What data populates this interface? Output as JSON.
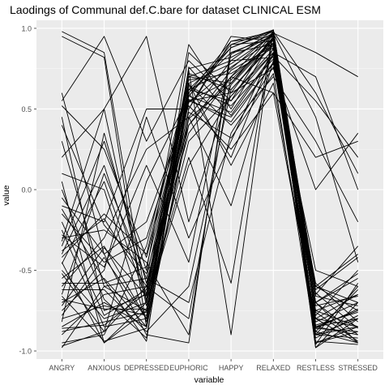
{
  "chart_data": {
    "type": "line",
    "title": "Laodings of Communal def.C.bare for dataset CLINICAL ESM",
    "xlabel": "variable",
    "ylabel": "value",
    "categories": [
      "ANGRY",
      "ANXIOUS",
      "DEPRESSED",
      "EUPHORIC",
      "HAPPY",
      "RELAXED",
      "RESTLESS",
      "STRESSED"
    ],
    "ylim": [
      -1.05,
      1.05
    ],
    "yticks": [
      -1.0,
      -0.5,
      0.0,
      0.5,
      1.0
    ],
    "ytick_labels": [
      "-1.0",
      "-0.5",
      "0.0",
      "0.5",
      "1.0"
    ],
    "grid": true,
    "legend": "none",
    "colors": {
      "panel": "#ebebeb",
      "grid_major": "#ffffff",
      "grid_minor": "#f5f5f5",
      "line": "#000000",
      "text": "#4d4d4d"
    },
    "series": [
      {
        "values": [
          0.98,
          0.85,
          -0.7,
          0.55,
          0.6,
          0.95,
          -0.9,
          -0.85
        ]
      },
      {
        "values": [
          0.95,
          0.82,
          -0.85,
          0.4,
          0.7,
          0.98,
          -0.98,
          -0.7
        ]
      },
      {
        "values": [
          -0.98,
          -0.6,
          -0.75,
          0.6,
          0.85,
          0.9,
          -0.85,
          -0.8
        ]
      },
      {
        "values": [
          -0.97,
          -0.88,
          -0.6,
          0.62,
          0.75,
          0.97,
          0.85,
          0.7
        ]
      },
      {
        "values": [
          0.6,
          -0.4,
          -0.9,
          -0.95,
          0.9,
          0.92,
          -0.6,
          -0.75
        ]
      },
      {
        "values": [
          0.55,
          0.95,
          0.3,
          0.8,
          0.55,
          0.85,
          -0.7,
          -0.95
        ]
      },
      {
        "values": [
          0.45,
          -0.75,
          -0.65,
          0.7,
          0.8,
          0.99,
          -0.8,
          -0.65
        ]
      },
      {
        "values": [
          0.2,
          0.5,
          0.95,
          -0.2,
          0.65,
          0.93,
          -0.75,
          -0.85
        ]
      },
      {
        "values": [
          -0.1,
          -0.2,
          0.5,
          0.5,
          0.92,
          0.98,
          -0.95,
          -0.88
        ]
      },
      {
        "values": [
          -0.25,
          -0.85,
          -0.8,
          0.85,
          0.6,
          0.75,
          0.0,
          0.35
        ]
      },
      {
        "values": [
          -0.35,
          0.3,
          -0.5,
          0.9,
          0.5,
          0.94,
          -0.6,
          -0.4
        ]
      },
      {
        "values": [
          -0.45,
          -0.95,
          -0.7,
          0.45,
          -0.1,
          0.8,
          -0.85,
          -0.9
        ]
      },
      {
        "values": [
          -0.55,
          -0.35,
          -0.8,
          0.75,
          0.82,
          0.96,
          -0.9,
          -0.6
        ]
      },
      {
        "values": [
          -0.65,
          0.1,
          -0.55,
          0.65,
          0.4,
          0.7,
          0.3,
          -0.2
        ]
      },
      {
        "values": [
          -0.75,
          -0.5,
          0.45,
          -0.3,
          0.3,
          0.88,
          -0.95,
          -0.85
        ]
      },
      {
        "values": [
          -0.85,
          -0.7,
          -0.85,
          0.58,
          0.9,
          0.99,
          -0.7,
          -0.55
        ]
      },
      {
        "values": [
          -0.9,
          -0.65,
          -0.6,
          0.35,
          0.7,
          0.6,
          -0.8,
          -0.95
        ]
      },
      {
        "values": [
          0.05,
          -0.95,
          -0.75,
          0.6,
          0.2,
          0.85,
          0.7,
          0.0
        ]
      },
      {
        "values": [
          -0.15,
          -0.45,
          -0.3,
          0.55,
          0.45,
          0.78,
          -0.6,
          -0.7
        ]
      },
      {
        "values": [
          -0.3,
          -0.25,
          -0.45,
          -0.9,
          0.85,
          0.95,
          -0.85,
          -0.75
        ]
      },
      {
        "values": [
          -0.4,
          0.15,
          -0.65,
          0.72,
          0.62,
          0.9,
          -0.9,
          -0.92
        ]
      },
      {
        "values": [
          -0.5,
          -0.8,
          -0.7,
          0.2,
          -0.58,
          0.99,
          -0.65,
          -0.35
        ]
      },
      {
        "values": [
          -0.6,
          -0.3,
          0.25,
          0.45,
          0.8,
          0.82,
          -0.75,
          -0.65
        ]
      },
      {
        "values": [
          -0.7,
          -0.55,
          -0.85,
          0.62,
          0.55,
          0.97,
          0.45,
          -0.45
        ]
      },
      {
        "values": [
          -0.8,
          -0.72,
          -0.78,
          0.5,
          0.95,
          0.92,
          -0.98,
          -0.8
        ]
      },
      {
        "values": [
          -0.95,
          -0.9,
          -0.35,
          0.68,
          0.72,
          0.88,
          -0.88,
          -0.95
        ]
      },
      {
        "values": [
          0.3,
          -0.6,
          -0.55,
          -0.7,
          0.35,
          0.76,
          -0.5,
          -0.6
        ]
      },
      {
        "values": [
          0.1,
          0.0,
          -0.82,
          0.55,
          0.68,
          0.93,
          -0.7,
          -0.9
        ]
      },
      {
        "values": [
          -0.05,
          -0.4,
          -0.2,
          0.52,
          0.25,
          0.6,
          0.2,
          0.3
        ]
      },
      {
        "values": [
          -0.2,
          -0.78,
          -0.62,
          0.74,
          -0.9,
          0.99,
          -0.8,
          -0.85
        ]
      },
      {
        "values": [
          -0.32,
          0.5,
          -0.72,
          0.15,
          0.58,
          0.85,
          -0.92,
          -0.78
        ]
      },
      {
        "values": [
          -0.42,
          -0.15,
          -0.4,
          0.66,
          0.78,
          0.96,
          -0.78,
          -0.5
        ]
      },
      {
        "values": [
          -0.52,
          -0.88,
          0.05,
          0.58,
          0.48,
          0.84,
          -0.86,
          -0.88
        ]
      },
      {
        "values": [
          -0.62,
          -0.62,
          -0.88,
          -0.6,
          0.62,
          0.91,
          -0.66,
          -0.72
        ]
      },
      {
        "values": [
          -0.72,
          -0.36,
          -0.66,
          0.62,
          0.88,
          0.98,
          0.6,
          0.1
        ]
      },
      {
        "values": [
          -0.82,
          0.35,
          -0.58,
          0.48,
          0.32,
          0.72,
          -0.94,
          -0.96
        ]
      },
      {
        "values": [
          -0.88,
          -0.82,
          -0.76,
          0.7,
          0.66,
          0.94,
          -0.72,
          -0.66
        ]
      },
      {
        "values": [
          0.4,
          -0.22,
          -0.52,
          0.4,
          0.74,
          0.89,
          -0.84,
          -0.76
        ]
      },
      {
        "values": [
          0.0,
          -0.68,
          -0.92,
          0.64,
          0.52,
          0.81,
          -0.58,
          -0.82
        ]
      },
      {
        "values": [
          -0.28,
          -0.48,
          0.15,
          -0.45,
          0.84,
          0.97,
          -0.88,
          -0.62
        ]
      },
      {
        "values": [
          -0.46,
          0.05,
          -0.68,
          0.56,
          0.42,
          0.79,
          -0.76,
          -0.94
        ]
      },
      {
        "values": [
          -0.58,
          -0.58,
          -0.48,
          0.6,
          0.92,
          0.95,
          -0.96,
          -0.58
        ]
      },
      {
        "values": [
          -0.68,
          -0.74,
          -0.74,
          0.3,
          0.58,
          0.87,
          -0.64,
          -0.86
        ]
      },
      {
        "values": [
          -0.78,
          -0.42,
          -0.8,
          0.66,
          0.15,
          0.66,
          -0.82,
          -0.7
        ]
      },
      {
        "values": [
          -0.86,
          -0.84,
          -0.64,
          0.54,
          0.76,
          0.93,
          -0.9,
          -0.8
        ]
      },
      {
        "values": [
          0.52,
          0.25,
          -0.42,
          0.58,
          0.88,
          0.99,
          -0.7,
          -0.52
        ]
      },
      {
        "values": [
          -0.12,
          -0.56,
          -0.94,
          0.76,
          0.46,
          0.83,
          0.55,
          0.2
        ]
      },
      {
        "values": [
          -0.38,
          -0.18,
          -0.6,
          -0.8,
          0.7,
          0.91,
          -0.62,
          -0.42
        ]
      },
      {
        "values": [
          -0.66,
          -0.94,
          -0.86,
          0.44,
          0.66,
          0.97,
          -0.86,
          -0.74
        ]
      }
    ]
  }
}
